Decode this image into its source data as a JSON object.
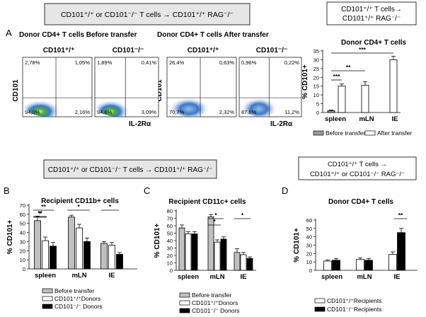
{
  "banners": {
    "top_left": "CD101⁺/⁺ or CD101⁻/⁻ T cells → CD101⁺/⁺ RAG⁻/⁻",
    "top_right_line1": "CD101⁺/⁺ T cells→",
    "top_right_line2": "CD101⁺/⁺ RAG⁻/⁻",
    "mid_left": "CD101⁺/⁺ or CD101⁻/⁻ T cells → CD101⁺/⁺ RAG⁻/⁻",
    "mid_right_line1": "CD101⁺/⁺   T cells →",
    "mid_right_line2": "CD101⁺/⁺ or CD101⁻/⁻  RAG⁻/⁻"
  },
  "panel_letters": {
    "a": "A",
    "b": "B",
    "c": "C",
    "d": "D"
  },
  "flow": {
    "title_before": "Donor CD4+ T cells Before transfer",
    "title_after": "Donor CD4+ T cells After transfer",
    "y_axis": "CD101",
    "x_axis": "IL-2Rα",
    "plots": [
      {
        "label": "CD101⁺/⁺",
        "q": [
          "2,78%",
          "1,05%",
          "94,0%",
          "2,16%"
        ]
      },
      {
        "label": "CD101⁻/⁻",
        "q": [
          "1,89%",
          "0,41%",
          "94,6%",
          "3,09%"
        ]
      },
      {
        "label": "CD101⁺/⁺",
        "q": [
          "26,4%",
          "0,63%",
          "70,7%",
          "2,32%"
        ]
      },
      {
        "label": "CD101⁻/⁻",
        "q": [
          "0,96%",
          "0,22%",
          "87,6%",
          "11,2%"
        ]
      }
    ]
  },
  "chart_data": [
    {
      "id": "A-right",
      "type": "bar",
      "title": "Donor CD4+ T cells",
      "ylabel": "% CD101+",
      "ylim": [
        0,
        35
      ],
      "yticks": [
        0,
        5,
        10,
        15,
        20,
        25,
        30,
        35
      ],
      "categories": [
        "spleen",
        "mLN",
        "IE"
      ],
      "series": [
        {
          "name": "Before transfer",
          "color": "#9a9a9a",
          "values": [
            1,
            null,
            null
          ],
          "errors": [
            0.4,
            null,
            null
          ]
        },
        {
          "name": "After transfer",
          "color": "#ffffff",
          "values": [
            15,
            15.5,
            30
          ],
          "errors": [
            1.2,
            2,
            2
          ]
        }
      ],
      "significance": [
        {
          "label": "***",
          "from": 0,
          "to": 0
        },
        {
          "label": "**",
          "from": 0,
          "to": 1
        },
        {
          "label": "***",
          "from": 0,
          "to": 2
        }
      ]
    },
    {
      "id": "B",
      "type": "bar",
      "title": "Recipient CD11b+ cells",
      "ylabel": "% CD101+",
      "ylim": [
        0,
        70
      ],
      "yticks": [
        0,
        10,
        20,
        30,
        40,
        50,
        60,
        70
      ],
      "categories": [
        "spleen",
        "mLN",
        "IE"
      ],
      "series": [
        {
          "name": "Before transfer",
          "color": "#c0c0c0",
          "values": [
            53,
            57,
            28
          ],
          "errors": [
            5,
            2,
            2
          ]
        },
        {
          "name": "CD101⁺/⁺Donors",
          "color": "#ffffff",
          "values": [
            31,
            45,
            26
          ],
          "errors": [
            4,
            4,
            3
          ]
        },
        {
          "name": "CD101⁻/⁻ Donors",
          "color": "#000000",
          "values": [
            25,
            30,
            16
          ],
          "errors": [
            4,
            4,
            2
          ]
        }
      ],
      "significance": [
        "**",
        "*",
        "*",
        "*"
      ]
    },
    {
      "id": "C",
      "type": "bar",
      "title": "Recipient CD11c+ cells",
      "ylabel": "% CD101+",
      "ylim": [
        0,
        80
      ],
      "yticks": [
        0,
        10,
        20,
        30,
        40,
        50,
        60,
        70,
        80
      ],
      "categories": [
        "spleen",
        "mLN",
        "IE"
      ],
      "series": [
        {
          "name": "Before transfer",
          "color": "#c0c0c0",
          "values": [
            57,
            72,
            24
          ],
          "errors": [
            4,
            3,
            5
          ]
        },
        {
          "name": "CD101⁺/⁺Donors",
          "color": "#ffffff",
          "values": [
            49,
            38,
            21
          ],
          "errors": [
            3,
            3,
            3
          ]
        },
        {
          "name": "CD101⁻/⁻ Donors",
          "color": "#000000",
          "values": [
            49,
            42,
            16
          ],
          "errors": [
            3,
            3,
            2
          ]
        }
      ],
      "significance": [
        "*",
        "*",
        "*"
      ]
    },
    {
      "id": "D",
      "type": "bar",
      "title": "Donor CD4+ T cells",
      "ylabel": "% CD101+",
      "ylim": [
        0,
        60
      ],
      "yticks": [
        0,
        10,
        20,
        30,
        40,
        50,
        60
      ],
      "categories": [
        "spleen",
        "mLN",
        "IE"
      ],
      "series": [
        {
          "name": "CD101⁺/⁺Recipients",
          "color": "#ffffff",
          "values": [
            11,
            13,
            19
          ],
          "errors": [
            1.5,
            2,
            3
          ]
        },
        {
          "name": "CD101⁻/⁻Recipients",
          "color": "#000000",
          "values": [
            12,
            12,
            45
          ],
          "errors": [
            2,
            2,
            5
          ]
        }
      ],
      "significance": [
        "**"
      ]
    }
  ]
}
